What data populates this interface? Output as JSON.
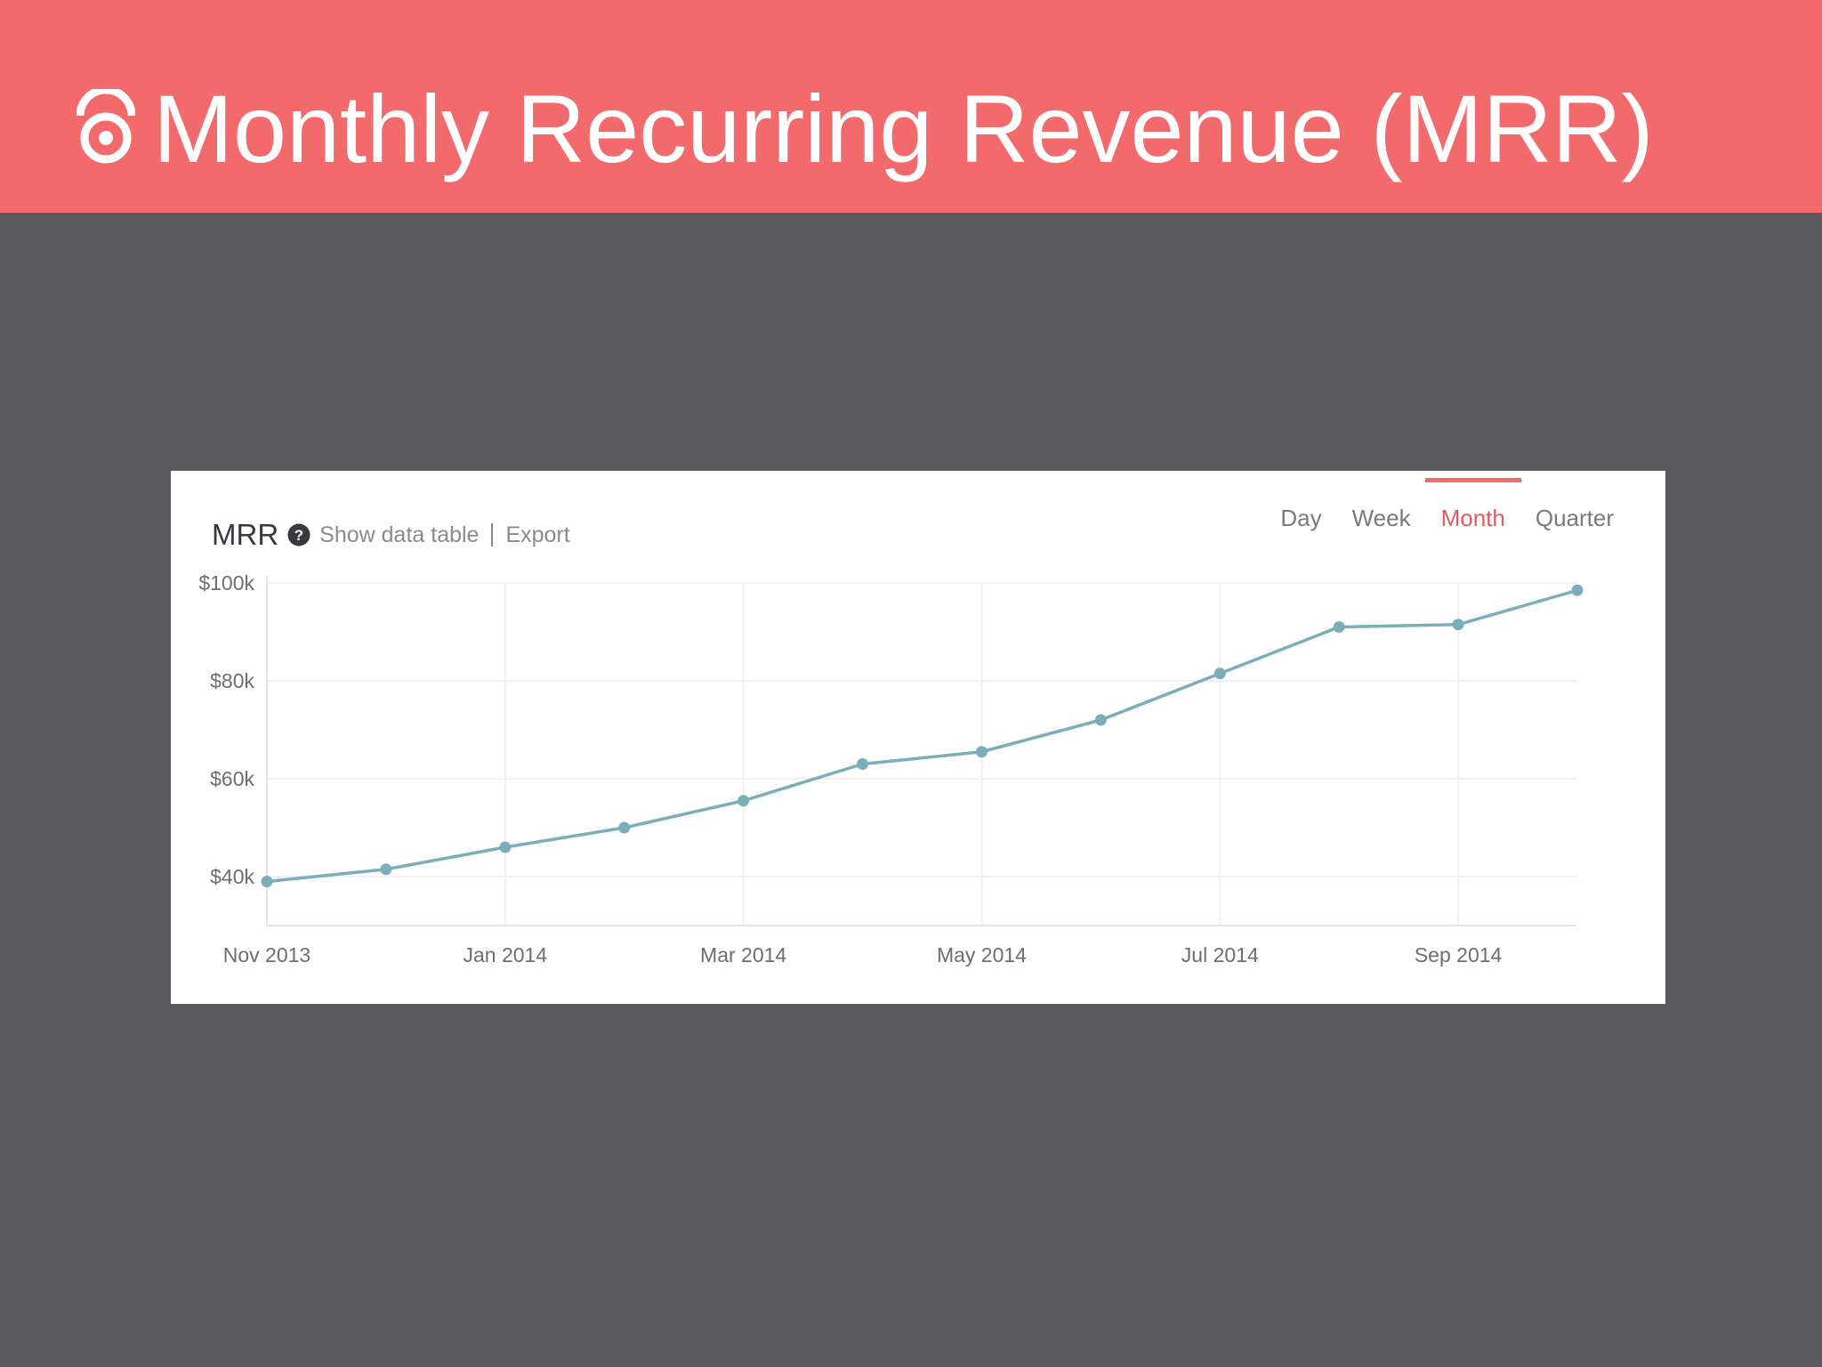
{
  "slide": {
    "title": "Monthly Recurring Revenue (MRR)",
    "logo_icon": "eye-target-icon"
  },
  "card": {
    "title": "MRR",
    "help_icon": "question-circle-icon",
    "show_table_label": "Show data table",
    "export_label": "Export",
    "periods": [
      "Day",
      "Week",
      "Month",
      "Quarter"
    ],
    "active_period": "Month"
  },
  "colors": {
    "header": "#f26a6c",
    "background": "#5a595c",
    "line": "#7aaeb8",
    "active_period": "#e05a60"
  },
  "chart_data": {
    "type": "line",
    "x": [
      "Nov 2013",
      "Dec 2013",
      "Jan 2014",
      "Feb 2014",
      "Mar 2014",
      "Apr 2014",
      "May 2014",
      "Jun 2014",
      "Jul 2014",
      "Aug 2014",
      "Sep 2014",
      "Oct 2014"
    ],
    "values": [
      39,
      41.5,
      46,
      50,
      55.5,
      63,
      65.5,
      72,
      81.5,
      91,
      91.5,
      98.5
    ],
    "x_tick_labels": [
      "Nov 2013",
      "Jan 2014",
      "Mar 2014",
      "May 2014",
      "Jul 2014",
      "Sep 2014"
    ],
    "y_tick_labels": [
      "$100k",
      "$80k",
      "$60k",
      "$40k"
    ],
    "y_ticks": [
      100,
      80,
      60,
      40
    ],
    "ylim": [
      30,
      100
    ],
    "grid": true,
    "title": "MRR"
  }
}
